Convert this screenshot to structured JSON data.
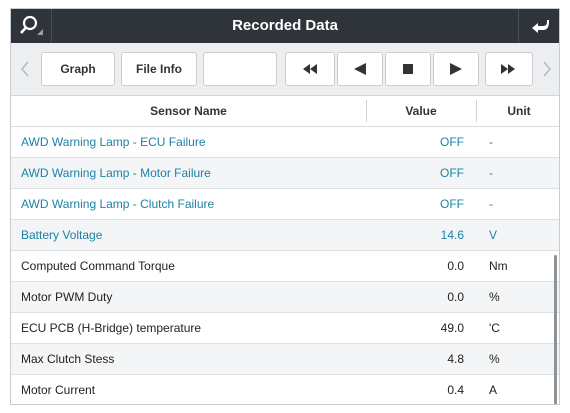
{
  "header": {
    "title": "Recorded Data"
  },
  "toolbar": {
    "buttons": [
      "Graph",
      "File Info"
    ]
  },
  "table": {
    "columns": [
      "Sensor Name",
      "Value",
      "Unit"
    ],
    "rows": [
      [
        "AWD Warning Lamp - ECU Failure",
        "OFF",
        "-"
      ],
      [
        "AWD Warning Lamp - Motor Failure",
        "OFF",
        "-"
      ],
      [
        "AWD Warning Lamp - Clutch Failure",
        "OFF",
        "-"
      ],
      [
        "Battery Voltage",
        "14.6",
        "V"
      ],
      [
        "Computed Command Torque",
        "0.0",
        "Nm"
      ],
      [
        "Motor PWM Duty",
        "0.0",
        "%"
      ],
      [
        "ECU PCB (H-Bridge) temperature",
        "49.0",
        "'C"
      ],
      [
        "Max Clutch Stess",
        "4.8",
        "%"
      ],
      [
        "Motor Current",
        "0.4",
        "A"
      ]
    ],
    "highlighted_rows": 4
  }
}
